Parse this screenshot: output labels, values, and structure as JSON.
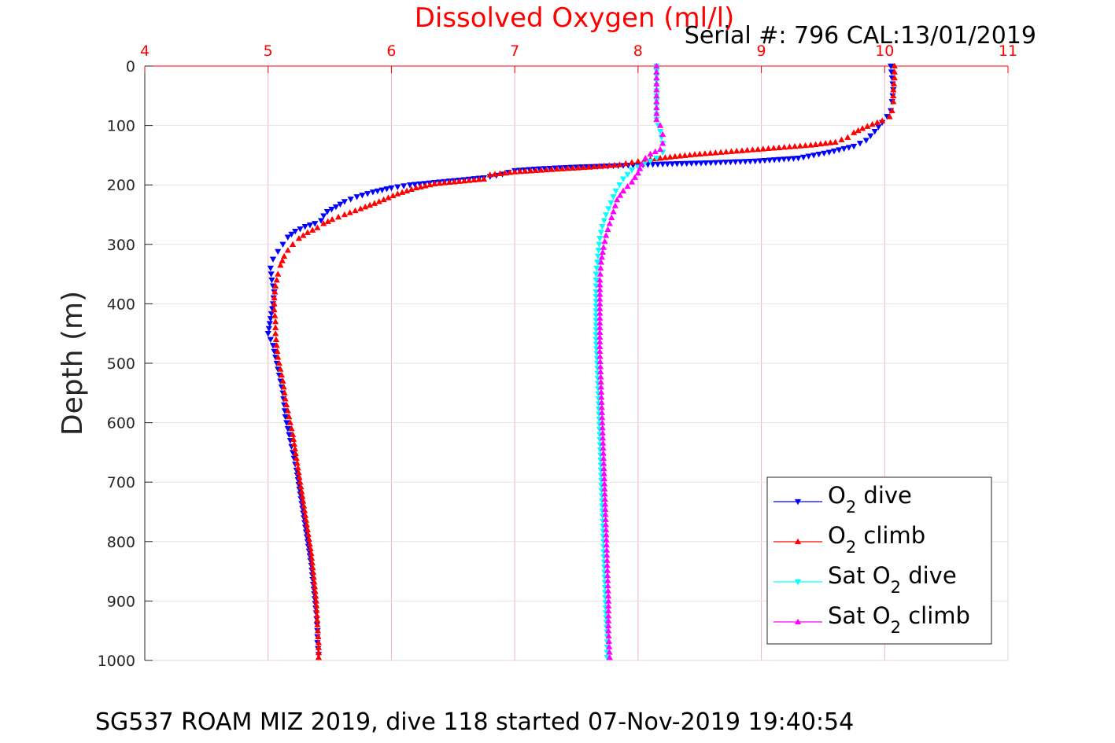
{
  "header": {
    "title": "Dissolved Oxygen (ml/l)",
    "serial": "Serial #: 796  CAL:13/01/2019"
  },
  "footer": {
    "caption": "SG537 ROAM MIZ 2019, dive 118 started 07-Nov-2019 19:40:54"
  },
  "chart_data": {
    "type": "scatter",
    "title": "Dissolved Oxygen (ml/l)",
    "xlabel": "",
    "ylabel": "Depth (m)",
    "xlim": [
      4,
      11
    ],
    "ylim": [
      0,
      1000
    ],
    "y_reversed": true,
    "x_axis_position": "top",
    "x_tick_color": "#ff0000",
    "grid": true,
    "grid_color": "#f0b3c8",
    "xticks": [
      "4",
      "5",
      "6",
      "7",
      "8",
      "9",
      "10",
      "11"
    ],
    "yticks": [
      "0",
      "100",
      "200",
      "300",
      "400",
      "500",
      "600",
      "700",
      "800",
      "900",
      "1000"
    ],
    "legend_position": "bottom-right",
    "series": [
      {
        "name": "O2 dive",
        "legend": {
          "pre": "O",
          "sub": "2",
          "post": " dive"
        },
        "color": "#0000ff",
        "marker": "triangle-down",
        "points": [
          [
            10.05,
            0
          ],
          [
            10.06,
            20
          ],
          [
            10.07,
            40
          ],
          [
            10.06,
            60
          ],
          [
            10.05,
            75
          ],
          [
            10.02,
            85
          ],
          [
            9.98,
            95
          ],
          [
            9.92,
            110
          ],
          [
            9.85,
            125
          ],
          [
            9.75,
            135
          ],
          [
            9.55,
            145
          ],
          [
            9.3,
            155
          ],
          [
            8.95,
            160
          ],
          [
            8.55,
            163
          ],
          [
            8.2,
            165
          ],
          [
            7.8,
            168
          ],
          [
            7.5,
            170
          ],
          [
            7.2,
            173
          ],
          [
            7.0,
            176
          ],
          [
            6.9,
            182
          ],
          [
            6.75,
            188
          ],
          [
            6.55,
            192
          ],
          [
            6.35,
            196
          ],
          [
            6.15,
            200
          ],
          [
            6.0,
            205
          ],
          [
            5.85,
            212
          ],
          [
            5.72,
            220
          ],
          [
            5.62,
            228
          ],
          [
            5.55,
            237
          ],
          [
            5.48,
            245
          ],
          [
            5.45,
            252
          ],
          [
            5.43,
            260
          ],
          [
            5.38,
            265
          ],
          [
            5.3,
            270
          ],
          [
            5.22,
            278
          ],
          [
            5.16,
            288
          ],
          [
            5.12,
            300
          ],
          [
            5.08,
            312
          ],
          [
            5.04,
            325
          ],
          [
            5.02,
            340
          ],
          [
            5.03,
            360
          ],
          [
            5.05,
            380
          ],
          [
            5.04,
            400
          ],
          [
            5.02,
            425
          ],
          [
            5.0,
            450
          ],
          [
            5.04,
            470
          ],
          [
            5.06,
            490
          ],
          [
            5.08,
            510
          ],
          [
            5.1,
            530
          ],
          [
            5.12,
            550
          ],
          [
            5.13,
            570
          ],
          [
            5.14,
            590
          ],
          [
            5.17,
            620
          ],
          [
            5.2,
            650
          ],
          [
            5.23,
            680
          ],
          [
            5.26,
            720
          ],
          [
            5.29,
            760
          ],
          [
            5.32,
            800
          ],
          [
            5.35,
            840
          ],
          [
            5.37,
            880
          ],
          [
            5.39,
            920
          ],
          [
            5.4,
            950
          ],
          [
            5.4,
            970
          ],
          [
            5.41,
            990
          ]
        ]
      },
      {
        "name": "O2 climb",
        "legend": {
          "pre": "O",
          "sub": "2",
          "post": " climb"
        },
        "color": "#ff0000",
        "marker": "triangle-up",
        "points": [
          [
            10.08,
            0
          ],
          [
            10.08,
            20
          ],
          [
            10.07,
            40
          ],
          [
            10.07,
            60
          ],
          [
            10.06,
            75
          ],
          [
            10.04,
            85
          ],
          [
            9.98,
            92
          ],
          [
            9.9,
            98
          ],
          [
            9.82,
            105
          ],
          [
            9.75,
            112
          ],
          [
            9.7,
            120
          ],
          [
            9.6,
            128
          ],
          [
            9.4,
            133
          ],
          [
            9.1,
            138
          ],
          [
            8.8,
            143
          ],
          [
            8.5,
            148
          ],
          [
            8.3,
            152
          ],
          [
            8.1,
            157
          ],
          [
            7.95,
            162
          ],
          [
            7.85,
            166
          ],
          [
            7.6,
            170
          ],
          [
            7.3,
            174
          ],
          [
            7.0,
            178
          ],
          [
            6.8,
            183
          ],
          [
            6.75,
            190
          ],
          [
            6.55,
            194
          ],
          [
            6.35,
            198
          ],
          [
            6.2,
            205
          ],
          [
            6.05,
            215
          ],
          [
            5.9,
            228
          ],
          [
            5.75,
            240
          ],
          [
            5.62,
            250
          ],
          [
            5.52,
            258
          ],
          [
            5.45,
            265
          ],
          [
            5.4,
            272
          ],
          [
            5.32,
            280
          ],
          [
            5.25,
            290
          ],
          [
            5.2,
            300
          ],
          [
            5.16,
            310
          ],
          [
            5.13,
            320
          ],
          [
            5.1,
            335
          ],
          [
            5.08,
            350
          ],
          [
            5.06,
            370
          ],
          [
            5.05,
            390
          ],
          [
            5.05,
            410
          ],
          [
            5.06,
            430
          ],
          [
            5.06,
            450
          ],
          [
            5.07,
            470
          ],
          [
            5.08,
            490
          ],
          [
            5.1,
            510
          ],
          [
            5.12,
            530
          ],
          [
            5.14,
            560
          ],
          [
            5.17,
            590
          ],
          [
            5.2,
            620
          ],
          [
            5.23,
            660
          ],
          [
            5.26,
            700
          ],
          [
            5.29,
            740
          ],
          [
            5.32,
            780
          ],
          [
            5.35,
            820
          ],
          [
            5.37,
            860
          ],
          [
            5.39,
            900
          ],
          [
            5.4,
            940
          ],
          [
            5.41,
            970
          ],
          [
            5.41,
            995
          ]
        ]
      },
      {
        "name": "Sat O2 dive",
        "legend": {
          "pre": "Sat O",
          "sub": "2",
          "post": " dive"
        },
        "color": "#00ffff",
        "marker": "triangle-down",
        "points": [
          [
            8.15,
            0
          ],
          [
            8.15,
            50
          ],
          [
            8.15,
            90
          ],
          [
            8.18,
            110
          ],
          [
            8.2,
            130
          ],
          [
            8.2,
            145
          ],
          [
            8.15,
            155
          ],
          [
            8.05,
            165
          ],
          [
            7.95,
            175
          ],
          [
            7.88,
            190
          ],
          [
            7.82,
            210
          ],
          [
            7.78,
            230
          ],
          [
            7.74,
            250
          ],
          [
            7.71,
            270
          ],
          [
            7.69,
            290
          ],
          [
            7.68,
            310
          ],
          [
            7.67,
            330
          ],
          [
            7.66,
            350
          ],
          [
            7.66,
            380
          ],
          [
            7.66,
            420
          ],
          [
            7.66,
            460
          ],
          [
            7.67,
            500
          ],
          [
            7.68,
            560
          ],
          [
            7.69,
            620
          ],
          [
            7.7,
            680
          ],
          [
            7.71,
            740
          ],
          [
            7.72,
            800
          ],
          [
            7.73,
            860
          ],
          [
            7.74,
            920
          ],
          [
            7.75,
            960
          ],
          [
            7.75,
            995
          ]
        ]
      },
      {
        "name": "Sat O2 climb",
        "legend": {
          "pre": "Sat O",
          "sub": "2",
          "post": " climb"
        },
        "color": "#ff00ff",
        "marker": "triangle-up",
        "points": [
          [
            8.15,
            0
          ],
          [
            8.15,
            30
          ],
          [
            8.15,
            60
          ],
          [
            8.15,
            90
          ],
          [
            8.18,
            100
          ],
          [
            8.2,
            115
          ],
          [
            8.2,
            130
          ],
          [
            8.18,
            140
          ],
          [
            8.1,
            148
          ],
          [
            8.06,
            155
          ],
          [
            8.03,
            165
          ],
          [
            8.0,
            180
          ],
          [
            7.95,
            195
          ],
          [
            7.88,
            210
          ],
          [
            7.83,
            225
          ],
          [
            7.8,
            245
          ],
          [
            7.77,
            265
          ],
          [
            7.74,
            285
          ],
          [
            7.72,
            305
          ],
          [
            7.7,
            330
          ],
          [
            7.69,
            360
          ],
          [
            7.69,
            400
          ],
          [
            7.69,
            440
          ],
          [
            7.69,
            480
          ],
          [
            7.7,
            540
          ],
          [
            7.71,
            600
          ],
          [
            7.72,
            660
          ],
          [
            7.73,
            720
          ],
          [
            7.74,
            780
          ],
          [
            7.75,
            840
          ],
          [
            7.76,
            900
          ],
          [
            7.76,
            950
          ],
          [
            7.77,
            995
          ]
        ]
      }
    ]
  }
}
